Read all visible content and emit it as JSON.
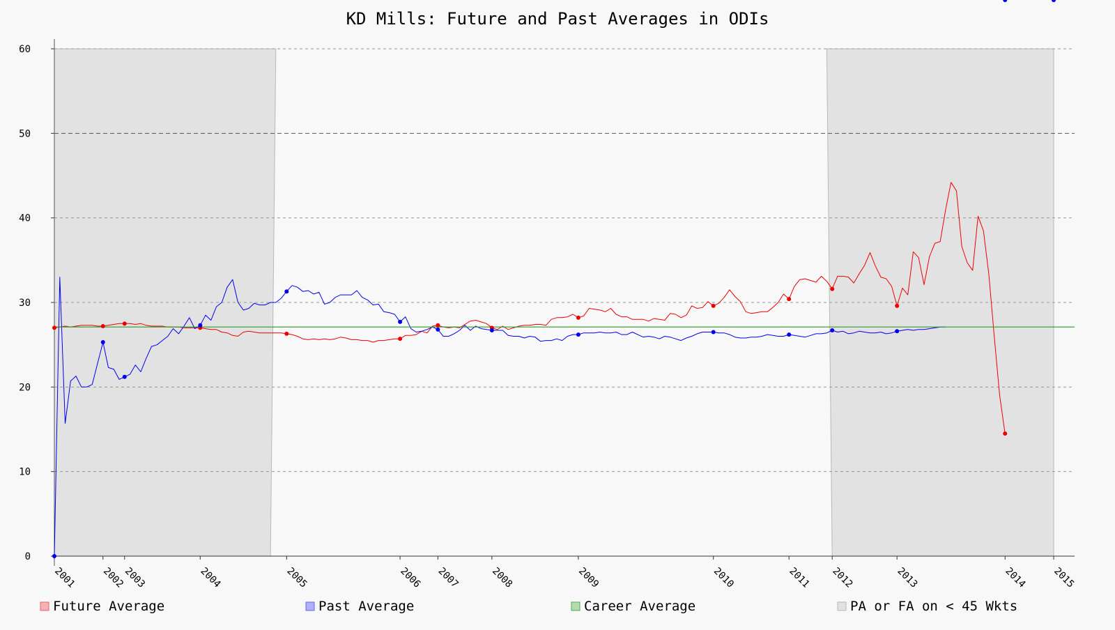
{
  "chart_data": {
    "type": "line",
    "title": "KD Mills: Future and Past Averages in ODIs",
    "xlabel": "",
    "ylabel": "",
    "xlim": [
      0,
      187
    ],
    "ylim": [
      0,
      60
    ],
    "y_ticks": [
      0,
      10,
      20,
      30,
      40,
      50,
      60
    ],
    "grid": true,
    "legend_position": "bottom",
    "x_tick_labels": [
      {
        "x": 0,
        "label": "2001"
      },
      {
        "x": 9,
        "label": "2002"
      },
      {
        "x": 13,
        "label": "2003"
      },
      {
        "x": 27,
        "label": "2004"
      },
      {
        "x": 43,
        "label": "2005"
      },
      {
        "x": 64,
        "label": "2006"
      },
      {
        "x": 71,
        "label": "2007"
      },
      {
        "x": 81,
        "label": "2008"
      },
      {
        "x": 97,
        "label": "2009"
      },
      {
        "x": 122,
        "label": "2010"
      },
      {
        "x": 136,
        "label": "2011"
      },
      {
        "x": 144,
        "label": "2012"
      },
      {
        "x": 156,
        "label": "2013"
      },
      {
        "x": 176,
        "label": "2014"
      },
      {
        "x": 185,
        "label": "2015"
      }
    ],
    "series": [
      {
        "name": "Future Average",
        "color": "#ee0000",
        "values": [
          27,
          27.1,
          27.2,
          27.1,
          27.2,
          27.3,
          27.3,
          27.3,
          27.2,
          27.2,
          27.3,
          27.4,
          27.5,
          27.5,
          27.5,
          27.4,
          27.5,
          27.3,
          27.2,
          27.2,
          27.2,
          27.1,
          27.1,
          27.1,
          27.0,
          27.0,
          27.0,
          27.0,
          26.9,
          26.8,
          26.8,
          26.5,
          26.4,
          26.1,
          26.0,
          26.5,
          26.6,
          26.5,
          26.4,
          26.4,
          26.4,
          26.4,
          26.4,
          26.3,
          26.2,
          26.0,
          25.7,
          25.6,
          25.7,
          25.6,
          25.7,
          25.6,
          25.7,
          25.9,
          25.8,
          25.6,
          25.6,
          25.5,
          25.5,
          25.3,
          25.5,
          25.5,
          25.6,
          25.7,
          25.7,
          26.1,
          26.1,
          26.2,
          26.6,
          26.4,
          27.2,
          27.3,
          27.1,
          27.0,
          27.1,
          27.0,
          27.4,
          27.8,
          27.9,
          27.7,
          27.5,
          27.0,
          26.8,
          27.2,
          26.8,
          27.0,
          27.2,
          27.3,
          27.3,
          27.4,
          27.4,
          27.3,
          28.0,
          28.2,
          28.2,
          28.3,
          28.6,
          28.2,
          28.4,
          29.3,
          29.2,
          29.1,
          28.9,
          29.3,
          28.6,
          28.3,
          28.3,
          28.0,
          28.0,
          28.0,
          27.8,
          28.1,
          28.0,
          27.9,
          28.7,
          28.6,
          28.2,
          28.5,
          29.6,
          29.3,
          29.4,
          30.1,
          29.6,
          29.9,
          30.6,
          31.5,
          30.7,
          30.1,
          28.9,
          28.7,
          28.8,
          28.9,
          28.9,
          29.4,
          30.0,
          31.0,
          30.4,
          31.9,
          32.7,
          32.8,
          32.6,
          32.4,
          33.1,
          32.5,
          31.6,
          33.1,
          33.1,
          33.0,
          32.3,
          33.4,
          34.4,
          35.9,
          34.3,
          33.0,
          32.8,
          31.9,
          29.6,
          31.7,
          30.9,
          36.0,
          35.3,
          32.1,
          35.4,
          37.0,
          37.2,
          41.0,
          44.2,
          43.2,
          36.6,
          34.7,
          33.8,
          40.2,
          38.5,
          33.3,
          26.0,
          19.0,
          14.5
        ]
      },
      {
        "name": "Past Average",
        "color": "#0000ee",
        "values": [
          0,
          33.0,
          15.7,
          20.7,
          21.3,
          20.0,
          20.0,
          20.3,
          22.8,
          25.3,
          22.3,
          22.1,
          20.9,
          21.2,
          21.5,
          22.6,
          21.8,
          23.4,
          24.8,
          25.0,
          25.5,
          26.0,
          26.9,
          26.3,
          27.2,
          28.2,
          26.9,
          27.3,
          28.5,
          27.9,
          29.5,
          30.0,
          31.8,
          32.7,
          30.0,
          29.1,
          29.3,
          29.9,
          29.7,
          29.7,
          30.0,
          30.0,
          30.5,
          31.3,
          32.0,
          31.8,
          31.3,
          31.4,
          31.0,
          31.2,
          29.8,
          30.0,
          30.6,
          30.9,
          30.9,
          30.9,
          31.4,
          30.6,
          30.3,
          29.7,
          29.8,
          28.9,
          28.8,
          28.6,
          27.7,
          28.3,
          26.9,
          26.5,
          26.6,
          26.8,
          27.1,
          26.8,
          26.0,
          26.0,
          26.3,
          26.7,
          27.3,
          26.7,
          27.2,
          26.9,
          26.8,
          26.7,
          26.7,
          26.7,
          26.1,
          26.0,
          26.0,
          25.8,
          26.0,
          25.9,
          25.4,
          25.5,
          25.5,
          25.7,
          25.5,
          26.0,
          26.2,
          26.2,
          26.4,
          26.4,
          26.4,
          26.5,
          26.4,
          26.4,
          26.5,
          26.2,
          26.2,
          26.5,
          26.2,
          25.9,
          26.0,
          25.9,
          25.7,
          26.0,
          25.9,
          25.7,
          25.5,
          25.8,
          26.0,
          26.3,
          26.5,
          26.5,
          26.5,
          26.4,
          26.4,
          26.2,
          25.9,
          25.8,
          25.8,
          25.9,
          25.9,
          26.0,
          26.2,
          26.1,
          26.0,
          26.0,
          26.2,
          26.1,
          26.0,
          25.9,
          26.1,
          26.3,
          26.3,
          26.4,
          26.7,
          26.5,
          26.6,
          26.3,
          26.4,
          26.6,
          26.5,
          26.4,
          26.4,
          26.5,
          26.3,
          26.4,
          26.6,
          26.7,
          26.8,
          26.7,
          26.8,
          26.8,
          26.9,
          27.0,
          27.1,
          27.1
        ]
      },
      {
        "name": "Career Average",
        "color": "#2a9a2a",
        "values": [
          27.1
        ]
      }
    ],
    "marker_indices": {
      "Future Average": [
        0,
        9,
        13,
        27,
        43,
        64,
        71,
        81,
        97,
        122,
        136,
        144,
        156,
        176,
        185
      ],
      "Past Average": [
        0,
        9,
        13,
        27,
        43,
        64,
        71,
        81,
        97,
        122,
        136,
        144,
        156,
        176,
        185
      ]
    },
    "shaded_regions": {
      "name": "PA or FA on < 45 Wkts",
      "color": "#e2e2e2",
      "regions": [
        [
          [
            0,
            0
          ],
          [
            0,
            60
          ],
          [
            41,
            60
          ],
          [
            40,
            0
          ]
        ],
        [
          [
            144,
            0
          ],
          [
            143,
            60
          ],
          [
            187,
            60
          ],
          [
            187,
            0
          ]
        ]
      ]
    }
  },
  "legend": [
    {
      "label": "Future Average",
      "fill": "#f7b0b0",
      "stroke": "#ee6666"
    },
    {
      "label": "Past Average",
      "fill": "#b0b0f7",
      "stroke": "#6666ee"
    },
    {
      "label": "Career Average",
      "fill": "#b0dcb0",
      "stroke": "#55aa55"
    },
    {
      "label": "PA or FA on < 45 Wkts",
      "fill": "#e2e2e2",
      "stroke": "#b8b8b8"
    }
  ]
}
